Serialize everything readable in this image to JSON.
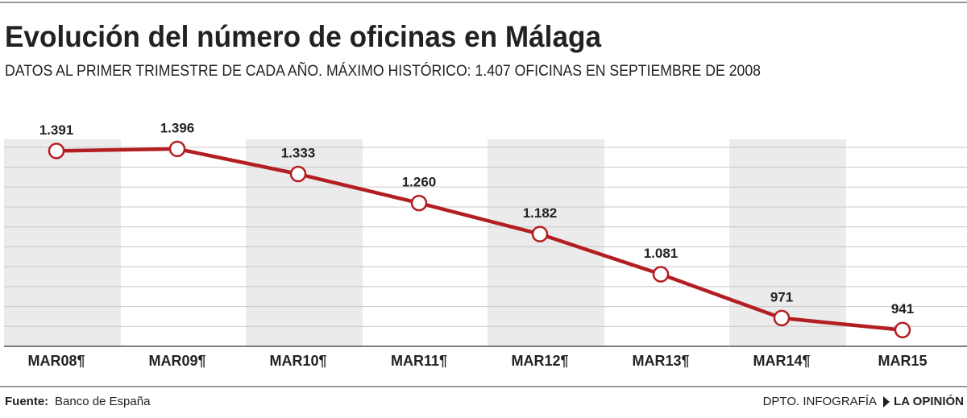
{
  "chart_data": {
    "type": "line",
    "title": "Evolución del número de oficinas en Málaga",
    "subtitle": "DATOS AL PRIMER TRIMESTRE DE CADA AÑO. MÁXIMO HISTÓRICO: 1.407 OFICINAS EN SEPTIEMBRE DE 2008",
    "categories": [
      "MAR08¶",
      "MAR09¶",
      "MAR10¶",
      "MAR11¶",
      "MAR12¶",
      "MAR13¶",
      "MAR14¶",
      "MAR15"
    ],
    "values": [
      1391,
      1396,
      1333,
      1260,
      1182,
      1081,
      971,
      941
    ],
    "value_labels": [
      "1.391",
      "1.396",
      "1.333",
      "1.260",
      "1.182",
      "1.081",
      "971",
      "941"
    ],
    "color": "#b31e22",
    "ylim": [
      900,
      1420
    ],
    "yticks": [
      950,
      1000,
      1050,
      1100,
      1150,
      1200,
      1250,
      1300,
      1350,
      1400
    ],
    "grid": true,
    "source_label": "Fuente:",
    "source": "Banco de España",
    "credit": "DPTO. INFOGRAFÍA",
    "brand": "LA OPINIÓN"
  }
}
